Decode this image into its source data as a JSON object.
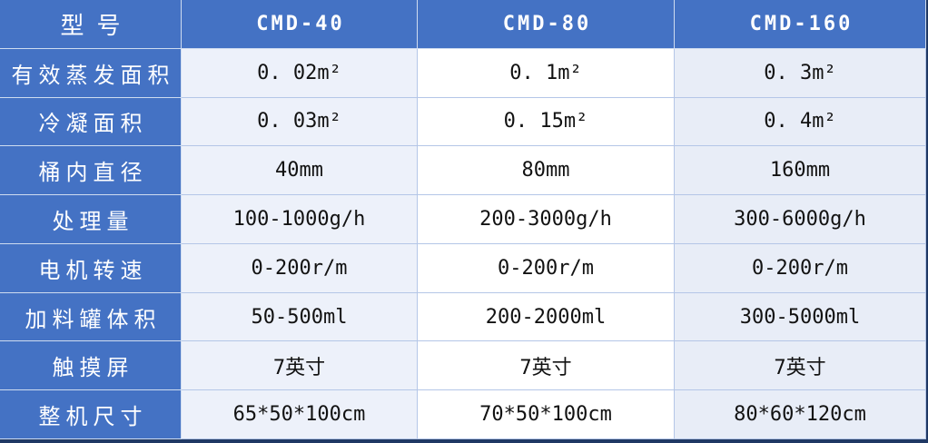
{
  "colors": {
    "header_blue": "#4472c4",
    "cell_light_blue": "#edf1fa",
    "cell_white": "#ffffff",
    "cell_light_blue_alt": "#e8edf7",
    "grid_line": "#b4c6e7",
    "outer_border_navy": "#1f3864",
    "header_text": "#ffffff",
    "data_text": "#121212"
  },
  "table": {
    "header": {
      "label": "型号",
      "models": [
        "CMD-40",
        "CMD-80",
        "CMD-160"
      ]
    },
    "rows": [
      {
        "label": "有效蒸发面积",
        "values": [
          "0. 02m²",
          "0. 1m²",
          "0. 3m²"
        ]
      },
      {
        "label": "冷凝面积",
        "values": [
          "0. 03m²",
          "0. 15m²",
          "0. 4m²"
        ]
      },
      {
        "label": "桶内直径",
        "values": [
          "40mm",
          "80mm",
          "160mm"
        ]
      },
      {
        "label": "处理量",
        "values": [
          "100-1000g/h",
          "200-3000g/h",
          "300-6000g/h"
        ]
      },
      {
        "label": "电机转速",
        "values": [
          "0-200r/m",
          "0-200r/m",
          "0-200r/m"
        ]
      },
      {
        "label": "加料罐体积",
        "values": [
          "50-500ml",
          "200-2000ml",
          "300-5000ml"
        ]
      },
      {
        "label": "触摸屏",
        "values": [
          "7英寸",
          "7英寸",
          "7英寸"
        ]
      },
      {
        "label": "整机尺寸",
        "values": [
          "65*50*100cm",
          "70*50*100cm",
          "80*60*120cm"
        ]
      }
    ]
  }
}
